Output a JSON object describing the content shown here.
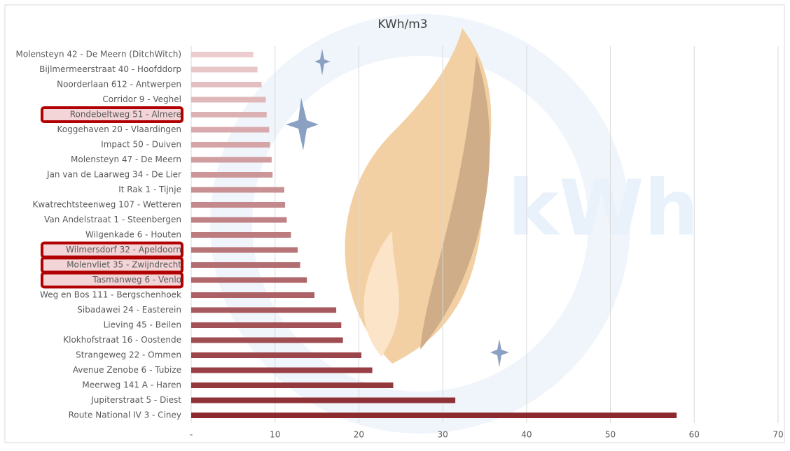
{
  "chart_data": {
    "type": "hbar",
    "title": "KWh/m3",
    "categories": [
      "Molensteyn 42 - De Meern (DitchWitch)",
      "Bijlmermeerstraat 40 - Hoofddorp",
      "Noorderlaan 612 - Antwerpen",
      "Corridor 9 - Veghel",
      "Rondebeltweg 51 - Almere",
      "Koggehaven 20 - Vlaardingen",
      "Impact 50 - Duiven",
      "Molensteyn 47 - De Meern",
      "Jan van de Laarweg 34 - De Lier",
      "It Rak 1 - Tijnje",
      "Kwatrechtsteenweg 107 - Wetteren",
      "Van Andelstraat 1 - Steenbergen",
      "Wilgenkade 6 - Houten",
      "Wilmersdorf 32 - Apeldoorn",
      "Molenvliet 35 - Zwijndrecht",
      "Tasmanweg 6 - Venlo",
      "Weg en Bos 111 - Bergschenhoek",
      "Sibadawei 24 - Easterein",
      "Lieving 45 - Beilen",
      "Klokhofstraat 16 - Oostende",
      "Strangeweg 22 - Ommen",
      "Avenue Zenobe 6 - Tubize",
      "Meerweg 141 A - Haren",
      "Jupiterstraat 5 - Diest",
      "Route National IV  3  - Ciney"
    ],
    "values": [
      7.4,
      7.9,
      8.4,
      8.9,
      9.0,
      9.3,
      9.4,
      9.6,
      9.7,
      11.1,
      11.2,
      11.4,
      11.9,
      12.7,
      13.0,
      13.8,
      14.7,
      17.3,
      17.9,
      18.1,
      20.3,
      21.6,
      24.1,
      31.5,
      57.9
    ],
    "color_range": [
      "#ecccce",
      "#8b2b30"
    ],
    "highlighted": [
      4,
      13,
      14,
      15
    ],
    "highlight_color": "#b00000",
    "xlim": [
      0,
      70
    ],
    "xticks": [
      {
        "value": 0,
        "label": "-"
      },
      10,
      20,
      30,
      40,
      50,
      60,
      70
    ],
    "grid": true
  }
}
